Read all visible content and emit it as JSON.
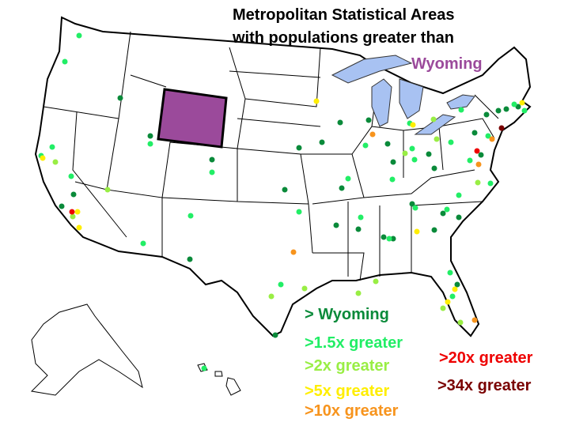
{
  "title": {
    "lines": [
      "Metropolitan Statistical Areas",
      "with populations greater than"
    ]
  },
  "highlight": {
    "label": "Wyoming",
    "color": "#9b4a9b"
  },
  "legend": [
    {
      "label": "> Wyoming",
      "color": "#0a8a3a"
    },
    {
      "label": ">1.5x greater",
      "color": "#22ee66"
    },
    {
      "label": ">2x greater",
      "color": "#99ee44"
    },
    {
      "label": ">5x greater",
      "color": "#ffee00"
    },
    {
      "label": ">10x greater",
      "color": "#f7941d"
    },
    {
      "label": ">20x greater",
      "color": "#ee0000"
    },
    {
      "label": ">34x greater",
      "color": "#7a0000"
    }
  ]
}
